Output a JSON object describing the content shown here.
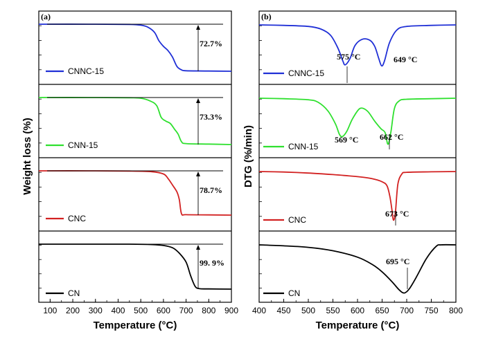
{
  "chart_data": [
    {
      "type": "line",
      "panel_label": "(a)",
      "xlabel": "Temperature (°C)",
      "ylabel": "Weight loss (%)",
      "xlim": [
        50,
        900
      ],
      "xticks": [
        "100",
        "200",
        "300",
        "400",
        "500",
        "600",
        "700",
        "800",
        "900"
      ],
      "xtick_values": [
        100,
        200,
        300,
        400,
        500,
        600,
        700,
        800,
        900
      ],
      "series": [
        {
          "name": "CNNC-15",
          "color": "#1f2fd6",
          "weight_loss": "72.7%",
          "x": [
            50,
            300,
            450,
            500,
            530,
            560,
            580,
            600,
            620,
            640,
            660,
            680,
            700,
            800,
            900
          ],
          "y": [
            1.0,
            1.0,
            0.995,
            0.98,
            0.94,
            0.83,
            0.65,
            0.53,
            0.44,
            0.3,
            0.1,
            0.03,
            0.01,
            0.005,
            0.0
          ]
        },
        {
          "name": "CNN-15",
          "color": "#2ee02e",
          "weight_loss": "73.3%",
          "x": [
            50,
            300,
            450,
            500,
            540,
            570,
            590,
            610,
            630,
            650,
            665,
            680,
            700,
            800,
            900
          ],
          "y": [
            1.0,
            1.0,
            0.995,
            0.985,
            0.93,
            0.83,
            0.58,
            0.5,
            0.45,
            0.32,
            0.22,
            0.06,
            0.02,
            0.01,
            0.0
          ]
        },
        {
          "name": "CNC",
          "color": "#d22121",
          "weight_loss": "78.7%",
          "x": [
            50,
            300,
            450,
            550,
            600,
            620,
            640,
            660,
            670,
            680,
            700,
            800,
            900
          ],
          "y": [
            1.0,
            1.0,
            0.995,
            0.98,
            0.93,
            0.83,
            0.68,
            0.52,
            0.35,
            0.03,
            0.01,
            0.005,
            0.0
          ]
        },
        {
          "name": "CN",
          "color": "#000000",
          "weight_loss": "99. 9%",
          "x": [
            50,
            300,
            450,
            550,
            600,
            640,
            670,
            700,
            720,
            740,
            760,
            800,
            900
          ],
          "y": [
            1.0,
            1.0,
            1.0,
            0.99,
            0.97,
            0.92,
            0.8,
            0.6,
            0.3,
            0.06,
            0.01,
            0.005,
            0.0
          ]
        }
      ]
    },
    {
      "type": "line",
      "panel_label": "(b)",
      "xlabel": "Temperature (°C)",
      "ylabel": "DTG (%/min)",
      "xlim": [
        400,
        800
      ],
      "xticks": [
        "400",
        "450",
        "500",
        "550",
        "600",
        "650",
        "700",
        "750",
        "800"
      ],
      "xtick_values": [
        400,
        450,
        500,
        550,
        600,
        650,
        700,
        750,
        800
      ],
      "series": [
        {
          "name": "CNNC-15",
          "color": "#1f2fd6",
          "peaks": [
            "575 °C",
            "649 °C"
          ],
          "x": [
            400,
            450,
            500,
            525,
            545,
            560,
            570,
            575,
            585,
            595,
            610,
            625,
            635,
            643,
            649,
            655,
            665,
            680,
            700,
            750,
            800
          ],
          "y": [
            1.0,
            0.99,
            0.97,
            0.92,
            0.8,
            0.55,
            0.3,
            0.22,
            0.35,
            0.6,
            0.72,
            0.7,
            0.58,
            0.35,
            0.2,
            0.3,
            0.65,
            0.9,
            0.97,
            0.99,
            1.0
          ]
        },
        {
          "name": "CNN-15",
          "color": "#2ee02e",
          "peaks": [
            "569 °C",
            "662 °C"
          ],
          "x": [
            400,
            450,
            500,
            520,
            540,
            555,
            563,
            569,
            578,
            590,
            605,
            620,
            635,
            648,
            656,
            662,
            668,
            675,
            685,
            700,
            750,
            800
          ],
          "y": [
            1.0,
            0.99,
            0.97,
            0.92,
            0.75,
            0.5,
            0.3,
            0.25,
            0.35,
            0.6,
            0.8,
            0.75,
            0.55,
            0.4,
            0.33,
            0.1,
            0.35,
            0.8,
            0.95,
            0.98,
            0.99,
            1.0
          ]
        },
        {
          "name": "CNC",
          "color": "#d22121",
          "peaks": [
            "673 °C"
          ],
          "x": [
            400,
            450,
            500,
            550,
            600,
            630,
            650,
            660,
            666,
            670,
            673,
            677,
            682,
            690,
            700,
            750,
            800
          ],
          "y": [
            1.0,
            0.99,
            0.97,
            0.94,
            0.9,
            0.86,
            0.8,
            0.72,
            0.5,
            0.25,
            0.05,
            0.2,
            0.75,
            0.95,
            0.985,
            0.995,
            1.0
          ]
        },
        {
          "name": "CN",
          "color": "#000000",
          "peaks": [
            "695 °C"
          ],
          "x": [
            400,
            450,
            500,
            550,
            600,
            630,
            650,
            670,
            685,
            695,
            705,
            720,
            740,
            760,
            770,
            800
          ],
          "y": [
            1.0,
            0.98,
            0.95,
            0.88,
            0.75,
            0.6,
            0.45,
            0.25,
            0.08,
            0.02,
            0.1,
            0.35,
            0.72,
            0.97,
            1.0,
            1.0
          ]
        }
      ]
    }
  ]
}
